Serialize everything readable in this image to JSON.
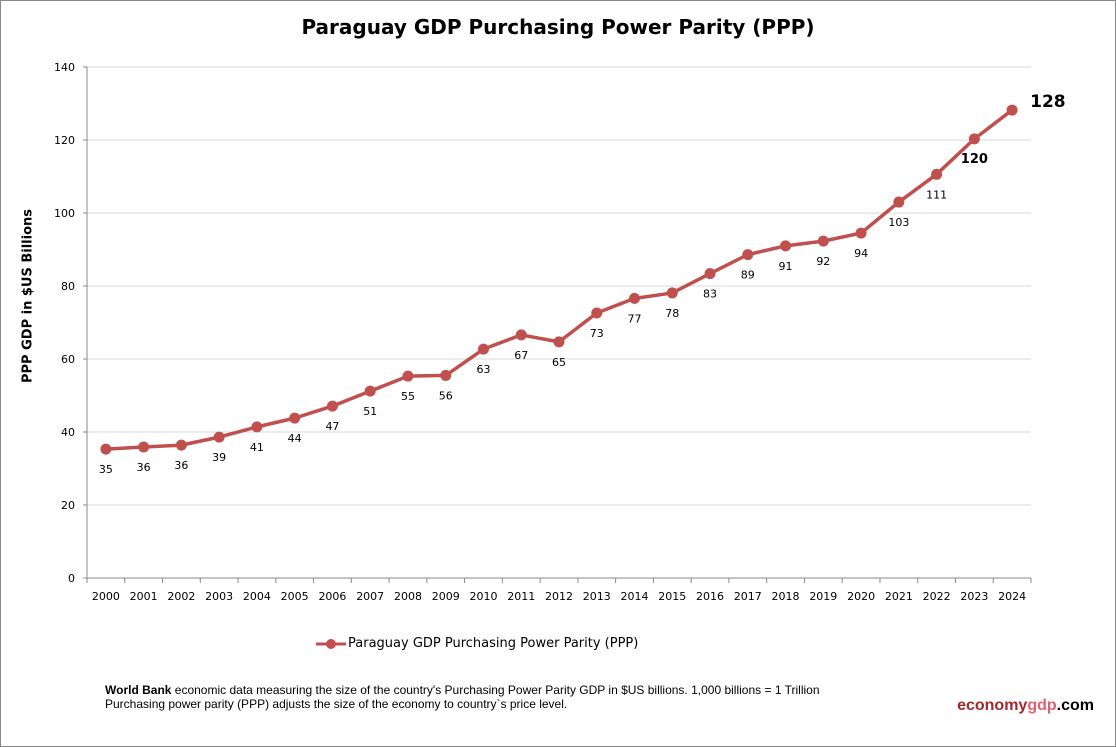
{
  "chart_data": {
    "type": "line",
    "title": "Paraguay GDP Purchasing Power Parity (PPP)",
    "xlabel": "",
    "ylabel": "PPP GDP in $US Billions",
    "ylim": [
      0,
      140
    ],
    "yticks": [
      0,
      20,
      40,
      60,
      80,
      100,
      120,
      140
    ],
    "grid": true,
    "legend": "bottom",
    "categories": [
      "2000",
      "2001",
      "2002",
      "2003",
      "2004",
      "2005",
      "2006",
      "2007",
      "2008",
      "2009",
      "2010",
      "2011",
      "2012",
      "2013",
      "2014",
      "2015",
      "2016",
      "2017",
      "2018",
      "2019",
      "2020",
      "2021",
      "2022",
      "2023",
      "2024"
    ],
    "series": [
      {
        "name": "Paraguay GDP Purchasing Power Parity (PPP)",
        "color": "#C0504D",
        "values": [
          35.3,
          35.9,
          36.4,
          38.6,
          41.4,
          43.8,
          47.1,
          51.2,
          55.3,
          55.5,
          62.7,
          66.6,
          64.7,
          72.6,
          76.6,
          78.1,
          83.4,
          88.6,
          91.0,
          92.3,
          94.5,
          103.0,
          110.6,
          120.3,
          128.2
        ],
        "labels": [
          "35",
          "36",
          "36",
          "39",
          "41",
          "44",
          "47",
          "51",
          "55",
          "56",
          "63",
          "67",
          "65",
          "73",
          "77",
          "78",
          "83",
          "89",
          "91",
          "92",
          "94",
          "103",
          "111",
          "120",
          "128"
        ]
      }
    ]
  },
  "footer": {
    "source_bold": "World Bank",
    "line1": " economic data  measuring the size of the country's Purchasing Power Parity GDP in $US billions. 1,000 billions = 1 Trillion",
    "line2": "Purchasing power parity (PPP) adjusts the size of the economy to country`s price level."
  },
  "brand": {
    "part1": "economy",
    "part2": "gdp",
    "part3": ".com",
    "color1": "#A0282A",
    "color2": "#E06070"
  }
}
